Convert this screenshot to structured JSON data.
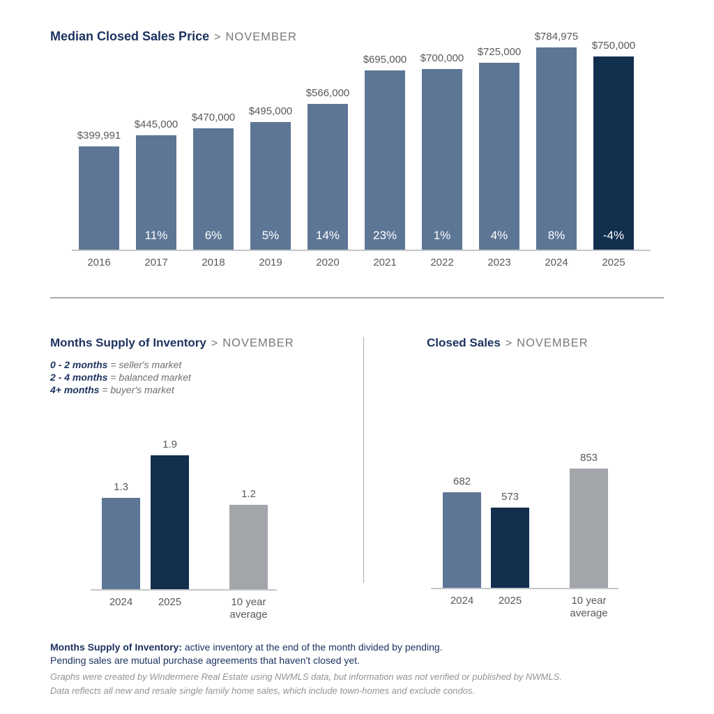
{
  "colors": {
    "title_navy": "#1d3360",
    "subtitle_grey": "#77787b",
    "bar_blue": "#5d7695",
    "bar_navy": "#122f4e",
    "bar_grey": "#a2a5a9",
    "label_grey": "#58595b",
    "percent_text": "#ffffff",
    "divider_grey": "#a7a9ac",
    "axis_grey": "#c4c6c8",
    "footnote_grey": "#919396"
  },
  "chart_data": [
    {
      "id": "median-price",
      "type": "bar",
      "title": "Median Closed Sales Price",
      "separator": ">",
      "subtitle": "NOVEMBER",
      "categories": [
        "2016",
        "2017",
        "2018",
        "2019",
        "2020",
        "2021",
        "2022",
        "2023",
        "2024",
        "2025"
      ],
      "values": [
        399991,
        445000,
        470000,
        495000,
        566000,
        695000,
        700000,
        725000,
        784975,
        750000
      ],
      "value_labels": [
        "$399,991",
        "$445,000",
        "$470,000",
        "$495,000",
        "$566,000",
        "$695,000",
        "$700,000",
        "$725,000",
        "$784,975",
        "$750,000"
      ],
      "pct_change_labels": [
        "",
        "11%",
        "6%",
        "5%",
        "14%",
        "23%",
        "1%",
        "4%",
        "8%",
        "-4%"
      ],
      "bar_color_roles": [
        "blue",
        "blue",
        "blue",
        "blue",
        "blue",
        "blue",
        "blue",
        "blue",
        "blue",
        "navy"
      ],
      "ylim": [
        0,
        784975
      ],
      "grid": false,
      "legend": "none",
      "xlabel": "",
      "ylabel": ""
    },
    {
      "id": "months-supply",
      "type": "bar",
      "title": "Months Supply of Inventory",
      "separator": ">",
      "subtitle": "NOVEMBER",
      "legend_lines": [
        {
          "term": "0 - 2 months",
          "definition": "= seller's market"
        },
        {
          "term": "2 - 4 months",
          "definition": "= balanced market"
        },
        {
          "term": "4+ months",
          "definition": "= buyer's market"
        }
      ],
      "categories": [
        "2024",
        "2025",
        "10 year average"
      ],
      "values": [
        1.3,
        1.9,
        1.2
      ],
      "value_labels": [
        "1.3",
        "1.9",
        "1.2"
      ],
      "bar_color_roles": [
        "blue",
        "navy",
        "grey"
      ],
      "ylim": [
        0,
        1.9
      ],
      "grid": false,
      "legend": "none",
      "xlabel": "",
      "ylabel": ""
    },
    {
      "id": "closed-sales",
      "type": "bar",
      "title": "Closed Sales",
      "separator": ">",
      "subtitle": "NOVEMBER",
      "categories": [
        "2024",
        "2025",
        "10 year average"
      ],
      "values": [
        682,
        573,
        853
      ],
      "value_labels": [
        "682",
        "573",
        "853"
      ],
      "bar_color_roles": [
        "blue",
        "navy",
        "grey"
      ],
      "ylim": [
        0,
        853
      ],
      "grid": false,
      "legend": "none",
      "xlabel": "",
      "ylabel": ""
    }
  ],
  "footer": {
    "definition_bold": "Months Supply of Inventory:",
    "definition_rest": " active inventory at the end of the month divided by pending.",
    "definition_line2": "Pending sales are mutual purchase agreements that haven't closed yet.",
    "disclaimer_line1": "Graphs were created by Windermere Real Estate using NWMLS data, but information was not verified or published by NWMLS.",
    "disclaimer_line2": "Data reflects all new and resale single family home sales, which include town-homes and exclude condos."
  }
}
